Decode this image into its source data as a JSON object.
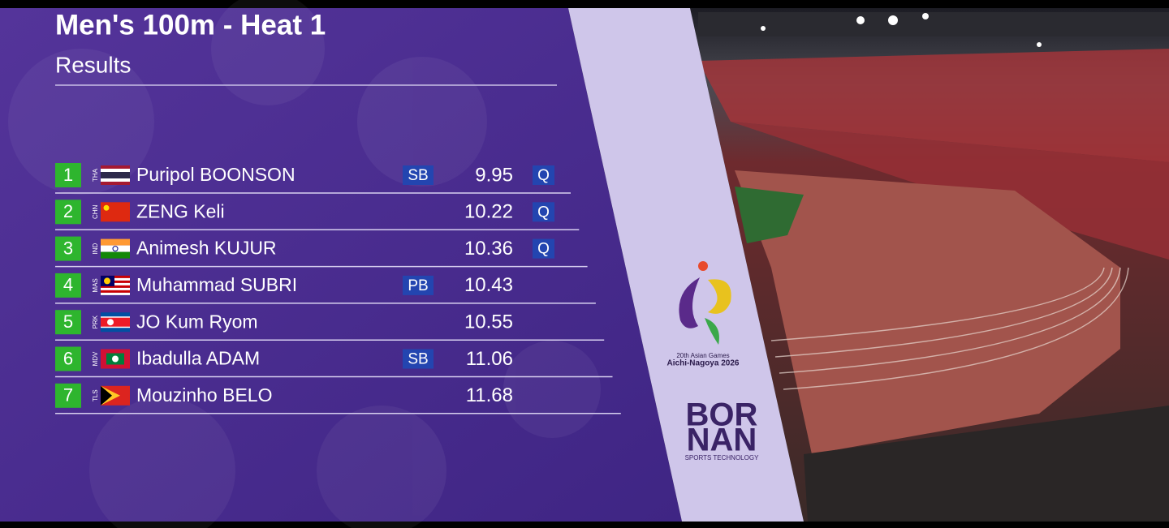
{
  "header": {
    "title": "Men's 100m - Heat 1",
    "subtitle": "Results"
  },
  "table": {
    "rows": [
      {
        "rank": "1",
        "country": "THA",
        "name": "Puripol BOONSON",
        "note": "SB",
        "time": "9.95",
        "qualifier": "Q"
      },
      {
        "rank": "2",
        "country": "CHN",
        "name": "ZENG Keli",
        "time": "10.22",
        "qualifier": "Q"
      },
      {
        "rank": "3",
        "country": "IND",
        "name": "Animesh KUJUR",
        "time": "10.36",
        "qualifier": "Q"
      },
      {
        "rank": "4",
        "country": "MAS",
        "name": "Muhammad SUBRI",
        "note": "PB",
        "time": "10.43"
      },
      {
        "rank": "5",
        "country": "PRK",
        "name": "JO Kum Ryom",
        "time": "10.55"
      },
      {
        "rank": "6",
        "country": "MDV",
        "name": "Ibadulla ADAM",
        "note": "SB",
        "time": "11.06"
      },
      {
        "rank": "7",
        "country": "TLS",
        "name": "Mouzinho BELO",
        "time": "11.68"
      }
    ]
  },
  "logo": {
    "event": "20th Asian Games",
    "host": "Aichi-Nagoya 2026",
    "brand_line1": "BOR",
    "brand_line2": "NAN",
    "brand_tagline": "SPORTS TECHNOLOGY"
  }
}
